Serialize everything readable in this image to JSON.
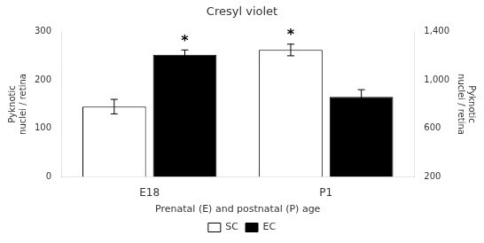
{
  "chart_data": {
    "type": "bar",
    "title": "Cresyl violet",
    "xlabel": "Prenatal (E) and postnatal (P) age",
    "ylabel": "Pyknotic\nnuclei / retina",
    "y2label": "Pyknotic\nnuclei / retina",
    "categories": [
      "E18",
      "P1"
    ],
    "series": [
      {
        "name": "SC",
        "color": "#ffffff",
        "values": [
          145,
          262
        ],
        "errors": [
          15,
          12
        ]
      },
      {
        "name": "EC",
        "color": "#000000",
        "values": [
          252,
          165
        ],
        "errors": [
          10,
          15
        ]
      }
    ],
    "ylim": [
      0,
      300
    ],
    "yticks": [
      0,
      100,
      200,
      300
    ],
    "y2lim": [
      200,
      1400
    ],
    "y2ticks": [
      200,
      600,
      1000,
      1400
    ],
    "annotations": [
      {
        "text": "*",
        "category": "E18",
        "series": "EC"
      },
      {
        "text": "*",
        "category": "P1",
        "series": "SC"
      }
    ],
    "grid": false,
    "legend": "bottom"
  }
}
